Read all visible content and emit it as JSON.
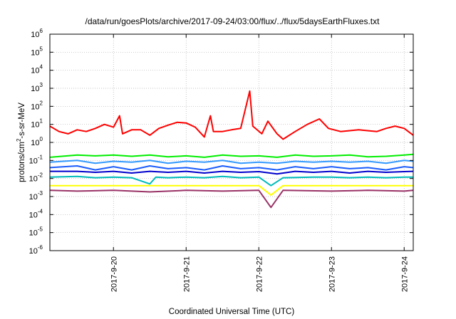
{
  "chart_data": {
    "type": "line",
    "title": "/data/run/goesPlots/archive/2017-09-24/03:00/flux/../flux/5daysEarthFluxes.txt",
    "xlabel": "Coordinated Universal Time (UTC)",
    "ylabel": "protons/cm2-s-sr-MeV",
    "ylabel_parts": {
      "pre": "protons/cm",
      "sup": "2",
      "post": "-s-sr-MeV"
    },
    "yscale": "log",
    "ylim": [
      1e-06,
      1000000.0
    ],
    "y_ticks": [
      {
        "base": "10",
        "exp": "-6"
      },
      {
        "base": "10",
        "exp": "-5"
      },
      {
        "base": "10",
        "exp": "-4"
      },
      {
        "base": "10",
        "exp": "-3"
      },
      {
        "base": "10",
        "exp": "-2"
      },
      {
        "base": "10",
        "exp": "-1"
      },
      {
        "base": "10",
        "exp": "0"
      },
      {
        "base": "10",
        "exp": "1"
      },
      {
        "base": "10",
        "exp": "2"
      },
      {
        "base": "10",
        "exp": "3"
      },
      {
        "base": "10",
        "exp": "4"
      },
      {
        "base": "10",
        "exp": "5"
      },
      {
        "base": "10",
        "exp": "6"
      }
    ],
    "xlim": [
      "2017-09-19 03:00",
      "2017-09-24 03:00"
    ],
    "x_ticks": [
      "2017-9-20",
      "2017-9-21",
      "2017-9-22",
      "2017-9-23",
      "2017-9-24"
    ],
    "grid": true,
    "series": [
      {
        "color": "#ff0000",
        "values": [
          [
            "2017-09-19 03:00",
            8
          ],
          [
            "2017-09-19 06:00",
            4
          ],
          [
            "2017-09-19 09:00",
            3
          ],
          [
            "2017-09-19 12:00",
            5
          ],
          [
            "2017-09-19 15:00",
            4
          ],
          [
            "2017-09-19 18:00",
            6
          ],
          [
            "2017-09-19 21:00",
            10
          ],
          [
            "2017-09-20 00:00",
            7
          ],
          [
            "2017-09-20 02:00",
            30
          ],
          [
            "2017-09-20 03:00",
            3
          ],
          [
            "2017-09-20 06:00",
            5
          ],
          [
            "2017-09-20 09:00",
            5
          ],
          [
            "2017-09-20 12:00",
            2.5
          ],
          [
            "2017-09-20 15:00",
            6
          ],
          [
            "2017-09-20 18:00",
            9
          ],
          [
            "2017-09-20 21:00",
            13
          ],
          [
            "2017-09-21 00:00",
            12
          ],
          [
            "2017-09-21 03:00",
            7
          ],
          [
            "2017-09-21 06:00",
            2
          ],
          [
            "2017-09-21 08:00",
            30
          ],
          [
            "2017-09-21 09:00",
            4
          ],
          [
            "2017-09-21 12:00",
            4
          ],
          [
            "2017-09-21 15:00",
            5
          ],
          [
            "2017-09-21 18:00",
            6
          ],
          [
            "2017-09-21 21:00",
            700
          ],
          [
            "2017-09-21 22:00",
            8
          ],
          [
            "2017-09-22 01:00",
            3
          ],
          [
            "2017-09-22 03:00",
            15
          ],
          [
            "2017-09-22 06:00",
            3
          ],
          [
            "2017-09-22 08:00",
            1.5
          ],
          [
            "2017-09-22 12:00",
            4
          ],
          [
            "2017-09-22 16:00",
            10
          ],
          [
            "2017-09-22 20:00",
            20
          ],
          [
            "2017-09-22 23:00",
            6
          ],
          [
            "2017-09-23 03:00",
            4
          ],
          [
            "2017-09-23 09:00",
            5
          ],
          [
            "2017-09-23 15:00",
            4
          ],
          [
            "2017-09-23 18:00",
            6
          ],
          [
            "2017-09-23 21:00",
            8
          ],
          [
            "2017-09-24 00:00",
            6
          ],
          [
            "2017-09-24 03:00",
            2.5
          ]
        ]
      },
      {
        "color": "#00ee00",
        "values": [
          [
            "2017-09-19 03:00",
            0.15
          ],
          [
            "2017-09-19 12:00",
            0.2
          ],
          [
            "2017-09-19 18:00",
            0.18
          ],
          [
            "2017-09-20 00:00",
            0.2
          ],
          [
            "2017-09-20 06:00",
            0.17
          ],
          [
            "2017-09-20 12:00",
            0.2
          ],
          [
            "2017-09-20 18:00",
            0.16
          ],
          [
            "2017-09-21 00:00",
            0.18
          ],
          [
            "2017-09-21 06:00",
            0.15
          ],
          [
            "2017-09-21 12:00",
            0.2
          ],
          [
            "2017-09-21 18:00",
            0.17
          ],
          [
            "2017-09-22 00:00",
            0.18
          ],
          [
            "2017-09-22 06:00",
            0.15
          ],
          [
            "2017-09-22 12:00",
            0.2
          ],
          [
            "2017-09-22 18:00",
            0.17
          ],
          [
            "2017-09-23 00:00",
            0.18
          ],
          [
            "2017-09-23 06:00",
            0.2
          ],
          [
            "2017-09-23 12:00",
            0.16
          ],
          [
            "2017-09-23 18:00",
            0.17
          ],
          [
            "2017-09-24 00:00",
            0.2
          ],
          [
            "2017-09-24 03:00",
            0.22
          ]
        ]
      },
      {
        "color": "#3399ff",
        "values": [
          [
            "2017-09-19 03:00",
            0.08
          ],
          [
            "2017-09-19 12:00",
            0.1
          ],
          [
            "2017-09-19 18:00",
            0.07
          ],
          [
            "2017-09-20 00:00",
            0.09
          ],
          [
            "2017-09-20 06:00",
            0.08
          ],
          [
            "2017-09-20 12:00",
            0.1
          ],
          [
            "2017-09-20 18:00",
            0.07
          ],
          [
            "2017-09-21 00:00",
            0.09
          ],
          [
            "2017-09-21 06:00",
            0.08
          ],
          [
            "2017-09-21 12:00",
            0.1
          ],
          [
            "2017-09-21 18:00",
            0.07
          ],
          [
            "2017-09-22 00:00",
            0.08
          ],
          [
            "2017-09-22 06:00",
            0.07
          ],
          [
            "2017-09-22 12:00",
            0.09
          ],
          [
            "2017-09-22 18:00",
            0.08
          ],
          [
            "2017-09-23 00:00",
            0.09
          ],
          [
            "2017-09-23 06:00",
            0.08
          ],
          [
            "2017-09-23 12:00",
            0.09
          ],
          [
            "2017-09-23 18:00",
            0.07
          ],
          [
            "2017-09-24 00:00",
            0.1
          ],
          [
            "2017-09-24 03:00",
            0.09
          ]
        ]
      },
      {
        "color": "#1a5cff",
        "values": [
          [
            "2017-09-19 03:00",
            0.04
          ],
          [
            "2017-09-19 12:00",
            0.05
          ],
          [
            "2017-09-19 18:00",
            0.03
          ],
          [
            "2017-09-20 00:00",
            0.045
          ],
          [
            "2017-09-20 06:00",
            0.03
          ],
          [
            "2017-09-20 12:00",
            0.05
          ],
          [
            "2017-09-20 18:00",
            0.035
          ],
          [
            "2017-09-21 00:00",
            0.04
          ],
          [
            "2017-09-21 06:00",
            0.03
          ],
          [
            "2017-09-21 12:00",
            0.05
          ],
          [
            "2017-09-21 18:00",
            0.035
          ],
          [
            "2017-09-22 00:00",
            0.04
          ],
          [
            "2017-09-22 06:00",
            0.03
          ],
          [
            "2017-09-22 12:00",
            0.045
          ],
          [
            "2017-09-22 18:00",
            0.035
          ],
          [
            "2017-09-23 00:00",
            0.045
          ],
          [
            "2017-09-23 06:00",
            0.035
          ],
          [
            "2017-09-23 12:00",
            0.04
          ],
          [
            "2017-09-23 18:00",
            0.03
          ],
          [
            "2017-09-24 00:00",
            0.045
          ],
          [
            "2017-09-24 03:00",
            0.04
          ]
        ]
      },
      {
        "color": "#0000cc",
        "values": [
          [
            "2017-09-19 03:00",
            0.025
          ],
          [
            "2017-09-19 12:00",
            0.025
          ],
          [
            "2017-09-19 18:00",
            0.022
          ],
          [
            "2017-09-20 00:00",
            0.025
          ],
          [
            "2017-09-20 06:00",
            0.02
          ],
          [
            "2017-09-20 12:00",
            0.025
          ],
          [
            "2017-09-20 18:00",
            0.022
          ],
          [
            "2017-09-21 00:00",
            0.025
          ],
          [
            "2017-09-21 06:00",
            0.02
          ],
          [
            "2017-09-21 12:00",
            0.025
          ],
          [
            "2017-09-21 18:00",
            0.022
          ],
          [
            "2017-09-22 00:00",
            0.024
          ],
          [
            "2017-09-22 06:00",
            0.018
          ],
          [
            "2017-09-22 12:00",
            0.025
          ],
          [
            "2017-09-22 18:00",
            0.022
          ],
          [
            "2017-09-23 00:00",
            0.025
          ],
          [
            "2017-09-23 06:00",
            0.02
          ],
          [
            "2017-09-23 12:00",
            0.025
          ],
          [
            "2017-09-23 18:00",
            0.022
          ],
          [
            "2017-09-24 00:00",
            0.024
          ],
          [
            "2017-09-24 03:00",
            0.025
          ]
        ]
      },
      {
        "color": "#00bbbb",
        "values": [
          [
            "2017-09-19 03:00",
            0.012
          ],
          [
            "2017-09-19 12:00",
            0.013
          ],
          [
            "2017-09-19 18:00",
            0.011
          ],
          [
            "2017-09-20 00:00",
            0.012
          ],
          [
            "2017-09-20 06:00",
            0.011
          ],
          [
            "2017-09-20 12:00",
            0.005
          ],
          [
            "2017-09-20 14:00",
            0.012
          ],
          [
            "2017-09-20 18:00",
            0.011
          ],
          [
            "2017-09-21 00:00",
            0.012
          ],
          [
            "2017-09-21 06:00",
            0.011
          ],
          [
            "2017-09-21 12:00",
            0.013
          ],
          [
            "2017-09-21 18:00",
            0.011
          ],
          [
            "2017-09-22 00:00",
            0.012
          ],
          [
            "2017-09-22 04:00",
            0.004
          ],
          [
            "2017-09-22 08:00",
            0.011
          ],
          [
            "2017-09-22 18:00",
            0.012
          ],
          [
            "2017-09-23 00:00",
            0.012
          ],
          [
            "2017-09-23 06:00",
            0.011
          ],
          [
            "2017-09-23 12:00",
            0.012
          ],
          [
            "2017-09-23 18:00",
            0.011
          ],
          [
            "2017-09-24 00:00",
            0.012
          ],
          [
            "2017-09-24 03:00",
            0.012
          ]
        ]
      },
      {
        "color": "#ffff00",
        "values": [
          [
            "2017-09-19 03:00",
            0.004
          ],
          [
            "2017-09-20 00:00",
            0.004
          ],
          [
            "2017-09-20 12:00",
            0.004
          ],
          [
            "2017-09-21 00:00",
            0.004
          ],
          [
            "2017-09-21 12:00",
            0.004
          ],
          [
            "2017-09-22 00:00",
            0.004
          ],
          [
            "2017-09-22 04:00",
            0.0012
          ],
          [
            "2017-09-22 08:00",
            0.004
          ],
          [
            "2017-09-23 00:00",
            0.004
          ],
          [
            "2017-09-23 12:00",
            0.004
          ],
          [
            "2017-09-24 00:00",
            0.004
          ],
          [
            "2017-09-24 03:00",
            0.004
          ]
        ]
      },
      {
        "color": "#993366",
        "values": [
          [
            "2017-09-19 03:00",
            0.0022
          ],
          [
            "2017-09-19 12:00",
            0.002
          ],
          [
            "2017-09-20 00:00",
            0.0022
          ],
          [
            "2017-09-20 12:00",
            0.0018
          ],
          [
            "2017-09-21 00:00",
            0.0022
          ],
          [
            "2017-09-21 12:00",
            0.002
          ],
          [
            "2017-09-22 00:00",
            0.0022
          ],
          [
            "2017-09-22 04:00",
            0.00025
          ],
          [
            "2017-09-22 08:00",
            0.0022
          ],
          [
            "2017-09-23 00:00",
            0.002
          ],
          [
            "2017-09-23 12:00",
            0.0022
          ],
          [
            "2017-09-24 00:00",
            0.002
          ],
          [
            "2017-09-24 03:00",
            0.0022
          ]
        ]
      }
    ]
  }
}
